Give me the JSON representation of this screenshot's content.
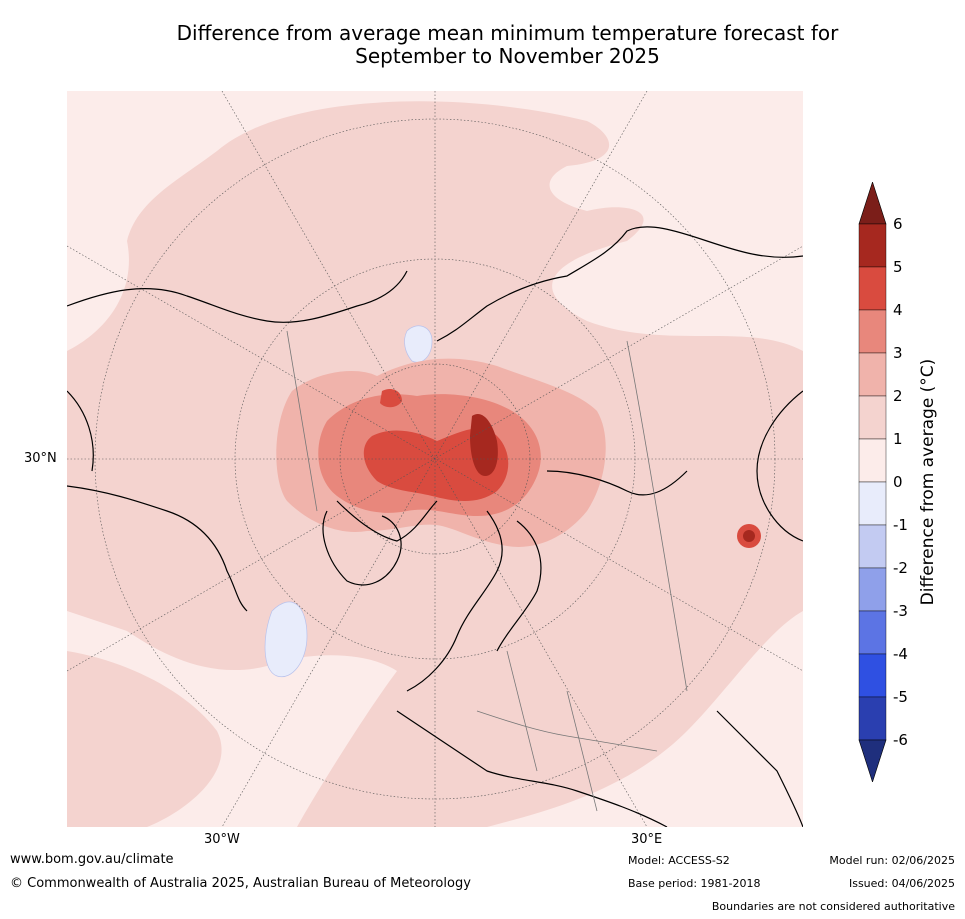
{
  "title_line1": "Difference from average mean minimum temperature forecast for",
  "title_line2": "September to November 2025",
  "map": {
    "projection": "north-polar-stereographic",
    "lat_labels": [
      "30°N"
    ],
    "lon_labels": [
      "30°W",
      "30°E"
    ]
  },
  "colorbar": {
    "label": "Difference from average (°C)",
    "ticks": [
      "6",
      "5",
      "4",
      "3",
      "2",
      "1",
      "0",
      "-1",
      "-2",
      "-3",
      "-4",
      "-5",
      "-6"
    ],
    "colors": [
      "#7b1e19",
      "#a6281f",
      "#d94b3f",
      "#e8877c",
      "#f0b3ab",
      "#f4d3cf",
      "#fcecea",
      "#e8ecfb",
      "#c3cbf2",
      "#8fa0ea",
      "#5c74e4",
      "#2f50e2",
      "#2a3fb0",
      "#1f2f7d"
    ],
    "extend": "both"
  },
  "footer": {
    "website": "www.bom.gov.au/climate",
    "copyright": "© Commonwealth of Australia 2025, Australian Bureau of Meteorology",
    "model": "Model: ACCESS-S2",
    "base_period": "Base period: 1981-2018",
    "model_run": "Model run: 02/06/2025",
    "issued": "Issued: 04/06/2025",
    "boundaries": "Boundaries are not considered authoritative"
  }
}
